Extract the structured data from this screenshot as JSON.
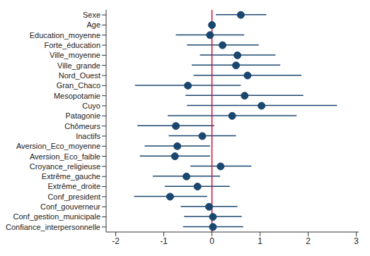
{
  "chart_data": {
    "type": "scatter",
    "orientation": "horizontal",
    "categories": [
      "Sexe",
      "Age",
      "Education_moyenne",
      "Forte_éducation",
      "Ville_moyenne",
      "Ville_grande",
      "Nord_Ouest",
      "Gran_Chaco",
      "Mesopotamie",
      "Cuyo",
      "Patagonie",
      "Chômeurs",
      "Inactifs",
      "Aversion_Eco_moyenne",
      "Aversion_Eco_faible",
      "Croyance_religieuse",
      "Extrême_gauche",
      "Extrême_droite",
      "Conf_president",
      "Conf_gouverneur",
      "Conf_gestion_municipale",
      "Confiance_interpersonnelle"
    ],
    "values": [
      0.6,
      0.0,
      -0.04,
      0.22,
      0.53,
      0.5,
      0.74,
      -0.5,
      0.68,
      1.03,
      0.42,
      -0.75,
      -0.2,
      -0.72,
      -0.77,
      0.18,
      -0.53,
      -0.3,
      -0.87,
      -0.06,
      0.02,
      0.02
    ],
    "lower": [
      0.08,
      -0.02,
      -0.75,
      -0.52,
      -0.25,
      -0.42,
      -0.38,
      -1.6,
      -0.55,
      -0.52,
      -0.92,
      -1.55,
      -0.9,
      -1.4,
      -1.5,
      -0.45,
      -1.23,
      -0.98,
      -1.62,
      -0.65,
      -0.58,
      -0.6
    ],
    "upper": [
      1.13,
      0.02,
      0.67,
      0.97,
      1.32,
      1.42,
      1.86,
      0.6,
      1.9,
      2.6,
      1.76,
      0.05,
      0.5,
      -0.04,
      -0.04,
      0.82,
      0.17,
      0.37,
      -0.1,
      0.53,
      0.62,
      0.65
    ],
    "color": "#1a476f",
    "marker": "circle",
    "xlim": [
      -2.2,
      3.05
    ],
    "xticks": [
      -2,
      -1,
      0,
      1,
      2,
      3
    ],
    "grid": false,
    "reference_line": {
      "x": 0,
      "color": "#c8103e"
    }
  }
}
